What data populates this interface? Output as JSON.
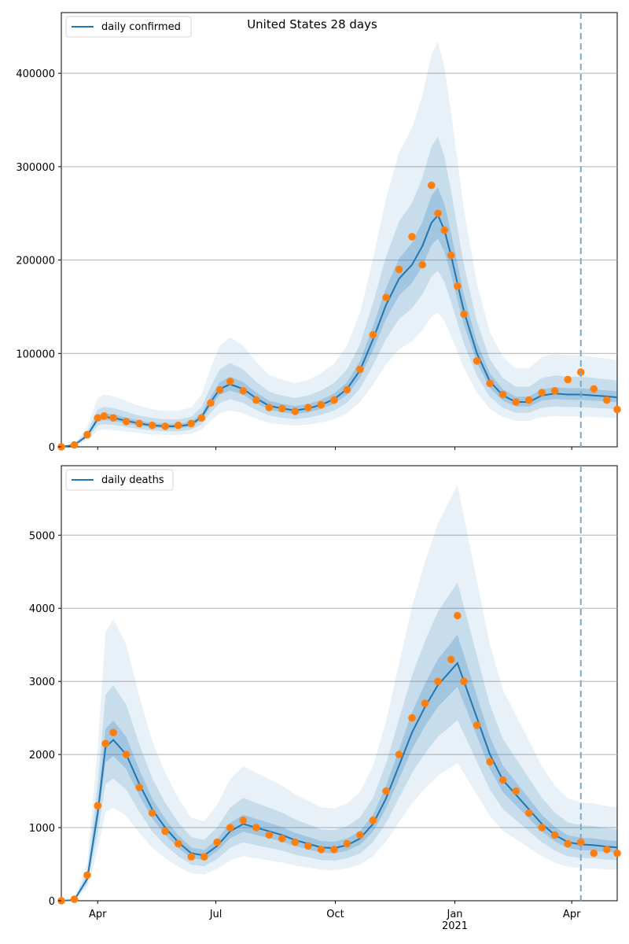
{
  "chart_data": [
    {
      "type": "line",
      "title": "United States 28 days",
      "legend": [
        "daily confirmed"
      ],
      "legend_position": "top-left",
      "ylim": [
        0,
        465000
      ],
      "yticks": [
        0,
        100000,
        200000,
        300000,
        400000
      ],
      "ytick_labels": [
        "0",
        "100000",
        "200000",
        "300000",
        "400000"
      ],
      "xlim_day": [
        0,
        428
      ],
      "forecast_start_day": 400,
      "grid": "horizontal",
      "series": [
        {
          "name": "daily confirmed",
          "kind": "line",
          "x_day": [
            0,
            10,
            20,
            28,
            33,
            40,
            50,
            60,
            70,
            80,
            90,
            100,
            108,
            115,
            122,
            130,
            140,
            150,
            160,
            170,
            180,
            190,
            200,
            210,
            220,
            230,
            240,
            250,
            260,
            270,
            278,
            285,
            290,
            295,
            300,
            305,
            310,
            320,
            330,
            340,
            350,
            360,
            370,
            380,
            390,
            400,
            410,
            420,
            428
          ],
          "values": [
            0,
            2000,
            12000,
            30000,
            32000,
            31000,
            28000,
            25000,
            23000,
            22000,
            22000,
            24000,
            32000,
            48000,
            62000,
            67000,
            62000,
            52000,
            44000,
            41000,
            39000,
            41000,
            45000,
            51000,
            62000,
            82000,
            115000,
            152000,
            180000,
            195000,
            215000,
            240000,
            248000,
            232000,
            205000,
            175000,
            145000,
            100000,
            70000,
            55000,
            48000,
            48000,
            55000,
            57000,
            56000,
            56000,
            55000,
            54000,
            53000
          ]
        },
        {
          "name": "observed daily confirmed",
          "kind": "scatter",
          "color": "#ff7f0e",
          "x_day": [
            0,
            10,
            20,
            28,
            33,
            40,
            50,
            60,
            70,
            80,
            90,
            100,
            108,
            115,
            122,
            130,
            140,
            150,
            160,
            170,
            180,
            190,
            200,
            210,
            220,
            230,
            240,
            250,
            260,
            270,
            278,
            285,
            290,
            295,
            300,
            305,
            310,
            320,
            330,
            340,
            350,
            360,
            370,
            380,
            390,
            400,
            410,
            420,
            428
          ],
          "values": [
            0,
            2000,
            13000,
            31000,
            33000,
            31000,
            27000,
            25000,
            23000,
            22000,
            23000,
            25000,
            31000,
            47000,
            61000,
            70000,
            60000,
            50000,
            42000,
            41000,
            38000,
            42000,
            45000,
            50000,
            61000,
            83000,
            120000,
            160000,
            190000,
            225000,
            195000,
            280000,
            250000,
            232000,
            205000,
            172000,
            142000,
            92000,
            68000,
            56000,
            48000,
            50000,
            58000,
            60000,
            72000,
            80000,
            62000,
            50000,
            40000
          ]
        }
      ],
      "bands_note": "shaded uncertainty intervals around the forecast line"
    },
    {
      "type": "line",
      "title": "",
      "legend": [
        "daily deaths"
      ],
      "legend_position": "top-left",
      "ylim": [
        0,
        5950
      ],
      "yticks": [
        0,
        1000,
        2000,
        3000,
        4000,
        5000
      ],
      "ytick_labels": [
        "0",
        "1000",
        "2000",
        "3000",
        "4000",
        "5000"
      ],
      "xlim_day": [
        0,
        428
      ],
      "forecast_start_day": 400,
      "grid": "horizontal",
      "x_tick_days": [
        28,
        119,
        211,
        303,
        393
      ],
      "x_tick_labels": [
        "Apr",
        "Jul",
        "Oct",
        "Jan",
        "Apr"
      ],
      "x_year_label": "2021",
      "series": [
        {
          "name": "daily deaths",
          "kind": "line",
          "x_day": [
            0,
            10,
            20,
            28,
            34,
            40,
            50,
            60,
            70,
            80,
            90,
            100,
            110,
            120,
            130,
            140,
            150,
            160,
            170,
            180,
            190,
            200,
            210,
            220,
            230,
            240,
            250,
            260,
            270,
            280,
            290,
            300,
            305,
            310,
            320,
            330,
            340,
            350,
            360,
            370,
            380,
            390,
            400,
            410,
            420,
            428
          ],
          "values": [
            0,
            10,
            300,
            1200,
            2100,
            2200,
            2000,
            1600,
            1250,
            1000,
            800,
            650,
            620,
            750,
            950,
            1050,
            1000,
            950,
            900,
            830,
            780,
            730,
            720,
            760,
            850,
            1050,
            1400,
            1850,
            2300,
            2650,
            2950,
            3150,
            3250,
            3000,
            2500,
            2000,
            1650,
            1450,
            1250,
            1050,
            900,
            800,
            770,
            760,
            740,
            730
          ]
        },
        {
          "name": "observed daily deaths",
          "kind": "scatter",
          "color": "#ff7f0e",
          "x_day": [
            0,
            10,
            20,
            28,
            34,
            40,
            50,
            60,
            70,
            80,
            90,
            100,
            110,
            120,
            130,
            140,
            150,
            160,
            170,
            180,
            190,
            200,
            210,
            220,
            230,
            240,
            250,
            260,
            270,
            280,
            290,
            300,
            305,
            310,
            320,
            330,
            340,
            350,
            360,
            370,
            380,
            390,
            400,
            410,
            420,
            428
          ],
          "values": [
            0,
            20,
            350,
            1300,
            2150,
            2300,
            2000,
            1550,
            1200,
            950,
            780,
            600,
            600,
            800,
            1000,
            1100,
            1000,
            900,
            850,
            800,
            750,
            700,
            700,
            780,
            900,
            1100,
            1500,
            2000,
            2500,
            2700,
            3000,
            3300,
            3900,
            3000,
            2400,
            1900,
            1650,
            1500,
            1200,
            1000,
            900,
            780,
            800,
            650,
            700,
            650
          ]
        }
      ],
      "bands_note": "shaded uncertainty intervals around the forecast line"
    }
  ]
}
